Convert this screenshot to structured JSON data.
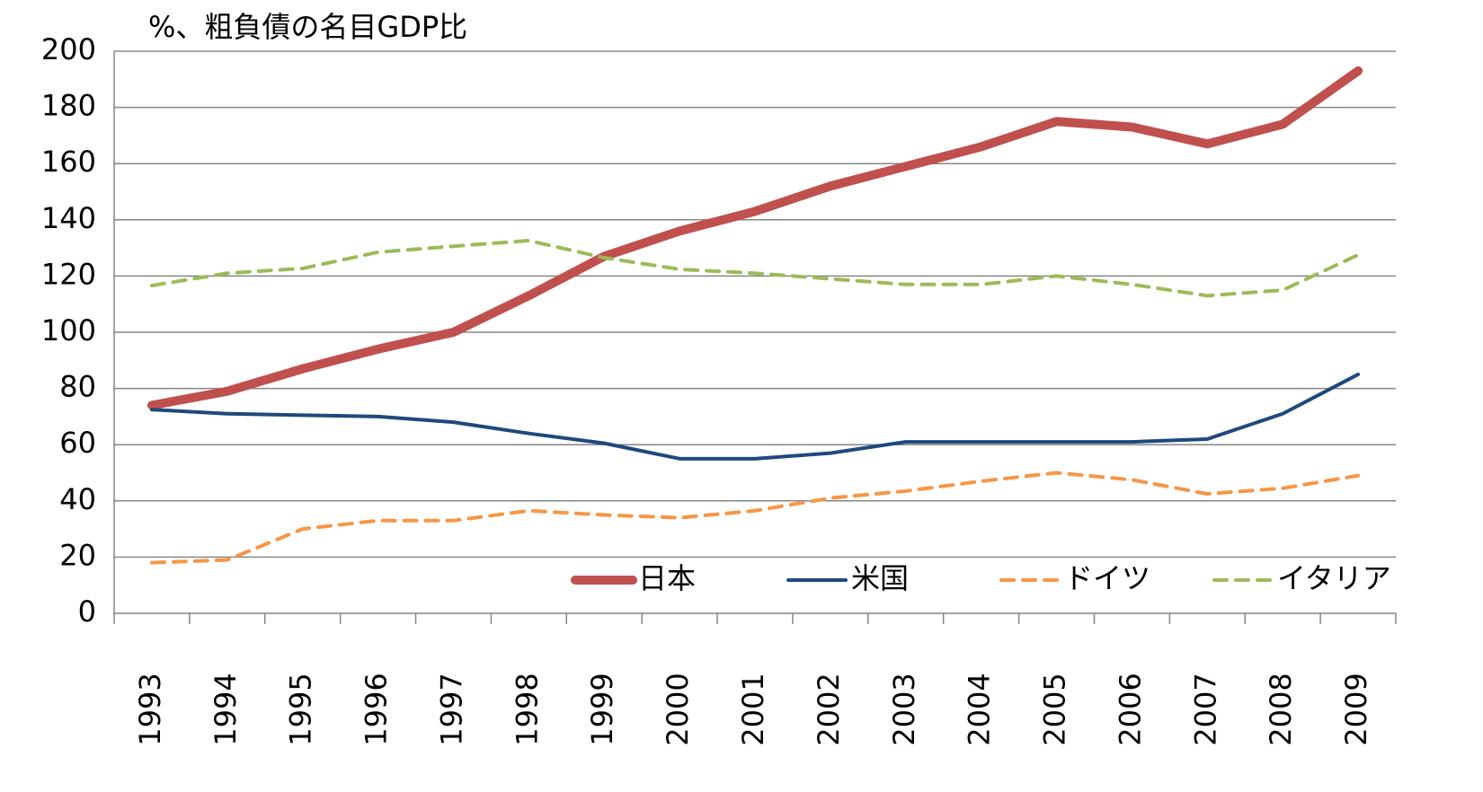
{
  "chart_data": {
    "type": "line",
    "title": "%、粗負債の名目GDP比",
    "categories": [
      "1993",
      "1994",
      "1995",
      "1996",
      "1997",
      "1998",
      "1999",
      "2000",
      "2001",
      "2002",
      "2003",
      "2004",
      "2005",
      "2006",
      "2007",
      "2008",
      "2009"
    ],
    "series": [
      {
        "name": "日本",
        "color": "#c0504d",
        "width": 10,
        "style": "solid",
        "values": [
          74,
          79,
          87,
          94,
          100,
          113,
          127,
          136,
          143,
          152,
          159,
          166,
          175,
          173,
          167,
          174,
          193
        ]
      },
      {
        "name": "米国",
        "color": "#1f497d",
        "width": 4,
        "style": "solid",
        "values": [
          72.5,
          71,
          70.5,
          70,
          68,
          64,
          60.5,
          55,
          55,
          57,
          61,
          61,
          61,
          61,
          62,
          71,
          85
        ]
      },
      {
        "name": "ドイツ",
        "color": "#f79646",
        "width": 4,
        "style": "dashed",
        "values": [
          18,
          19,
          30,
          33,
          33,
          36.5,
          35,
          34,
          36.5,
          41,
          43.5,
          47,
          50,
          47.5,
          42.5,
          44.5,
          49
        ]
      },
      {
        "name": "イタリア",
        "color": "#9bbb59",
        "width": 4,
        "style": "dashed",
        "values": [
          116.6,
          121,
          122.7,
          128.5,
          130.6,
          132.6,
          126.5,
          122.4,
          121,
          119,
          117,
          117,
          120,
          117,
          113,
          115,
          127.5
        ]
      }
    ],
    "ylim": [
      0,
      200
    ],
    "yticks": [
      0,
      20,
      40,
      60,
      80,
      100,
      120,
      140,
      160,
      180,
      200
    ],
    "grid": true,
    "legend": "lower right"
  }
}
